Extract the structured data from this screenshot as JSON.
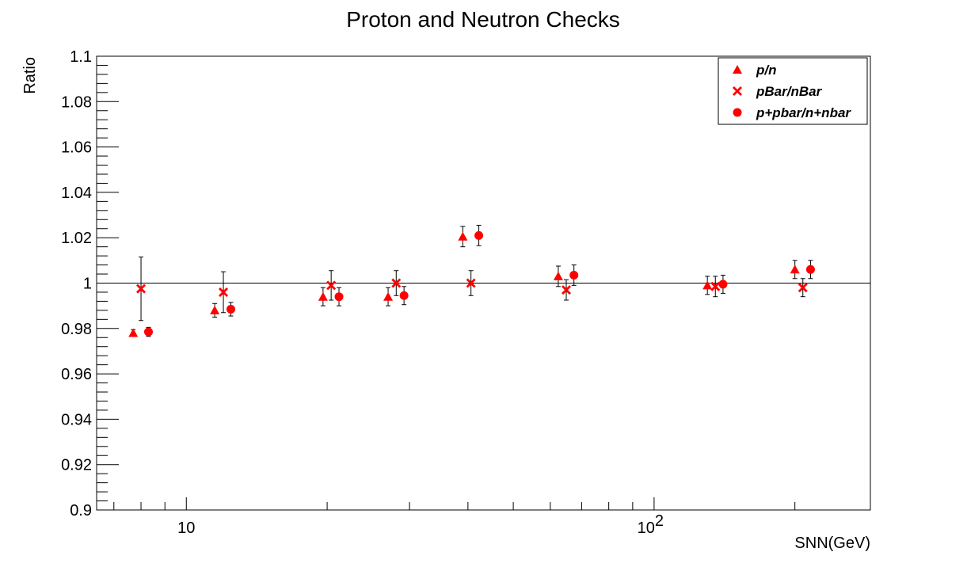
{
  "chart_data": {
    "type": "scatter",
    "title": "Proton and Neutron Checks",
    "xlabel": "SNN(GeV)",
    "ylabel": "Ratio",
    "xscale": "log",
    "xlim": [
      6.43,
      290
    ],
    "ylim": [
      0.9,
      1.1
    ],
    "x_tick_labels": [
      {
        "value": 10,
        "label": "10"
      },
      {
        "value": 100,
        "label": "10",
        "exponent": "2"
      }
    ],
    "y_ticks": [
      0.9,
      0.92,
      0.94,
      0.96,
      0.98,
      1,
      1.02,
      1.04,
      1.06,
      1.08,
      1.1
    ],
    "y_tick_labels": [
      "0.9",
      "0.92",
      "0.94",
      "0.96",
      "0.98",
      "1",
      "1.02",
      "1.04",
      "1.06",
      "1.08",
      "1.1"
    ],
    "reference_line": 1,
    "grid": false,
    "legend_position": "top-right",
    "series": [
      {
        "name": "p/n",
        "marker": "triangle",
        "color": "#ff0000",
        "points": [
          {
            "x": 7.7,
            "y": 0.978,
            "err": 0.0015
          },
          {
            "x": 11.5,
            "y": 0.988,
            "err": 0.003
          },
          {
            "x": 19.6,
            "y": 0.994,
            "err": 0.004
          },
          {
            "x": 27,
            "y": 0.994,
            "err": 0.004
          },
          {
            "x": 39,
            "y": 1.0205,
            "err": 0.0045
          },
          {
            "x": 62.4,
            "y": 1.003,
            "err": 0.0045
          },
          {
            "x": 130,
            "y": 0.999,
            "err": 0.004
          },
          {
            "x": 200,
            "y": 1.006,
            "err": 0.004
          }
        ]
      },
      {
        "name": "pBar/nBar",
        "marker": "cross",
        "color": "#ff0000",
        "points": [
          {
            "x": 8.0,
            "y": 0.9975,
            "err": 0.014
          },
          {
            "x": 12.0,
            "y": 0.996,
            "err": 0.009
          },
          {
            "x": 20.4,
            "y": 0.999,
            "err": 0.0065
          },
          {
            "x": 28.1,
            "y": 1.0,
            "err": 0.0055
          },
          {
            "x": 40.6,
            "y": 1.0,
            "err": 0.0055
          },
          {
            "x": 64.9,
            "y": 0.997,
            "err": 0.0045
          },
          {
            "x": 135.2,
            "y": 0.9985,
            "err": 0.0045
          },
          {
            "x": 208,
            "y": 0.998,
            "err": 0.004
          }
        ]
      },
      {
        "name": "p+pbar/n+nbar",
        "marker": "circle",
        "color": "#ff0000",
        "points": [
          {
            "x": 8.3,
            "y": 0.9785,
            "err": 0.002
          },
          {
            "x": 12.45,
            "y": 0.9885,
            "err": 0.003
          },
          {
            "x": 21.2,
            "y": 0.994,
            "err": 0.004
          },
          {
            "x": 29.2,
            "y": 0.9945,
            "err": 0.004
          },
          {
            "x": 42.2,
            "y": 1.021,
            "err": 0.0045
          },
          {
            "x": 67.4,
            "y": 1.0035,
            "err": 0.0045
          },
          {
            "x": 140.4,
            "y": 0.9995,
            "err": 0.004
          },
          {
            "x": 216,
            "y": 1.006,
            "err": 0.004
          }
        ]
      }
    ]
  }
}
